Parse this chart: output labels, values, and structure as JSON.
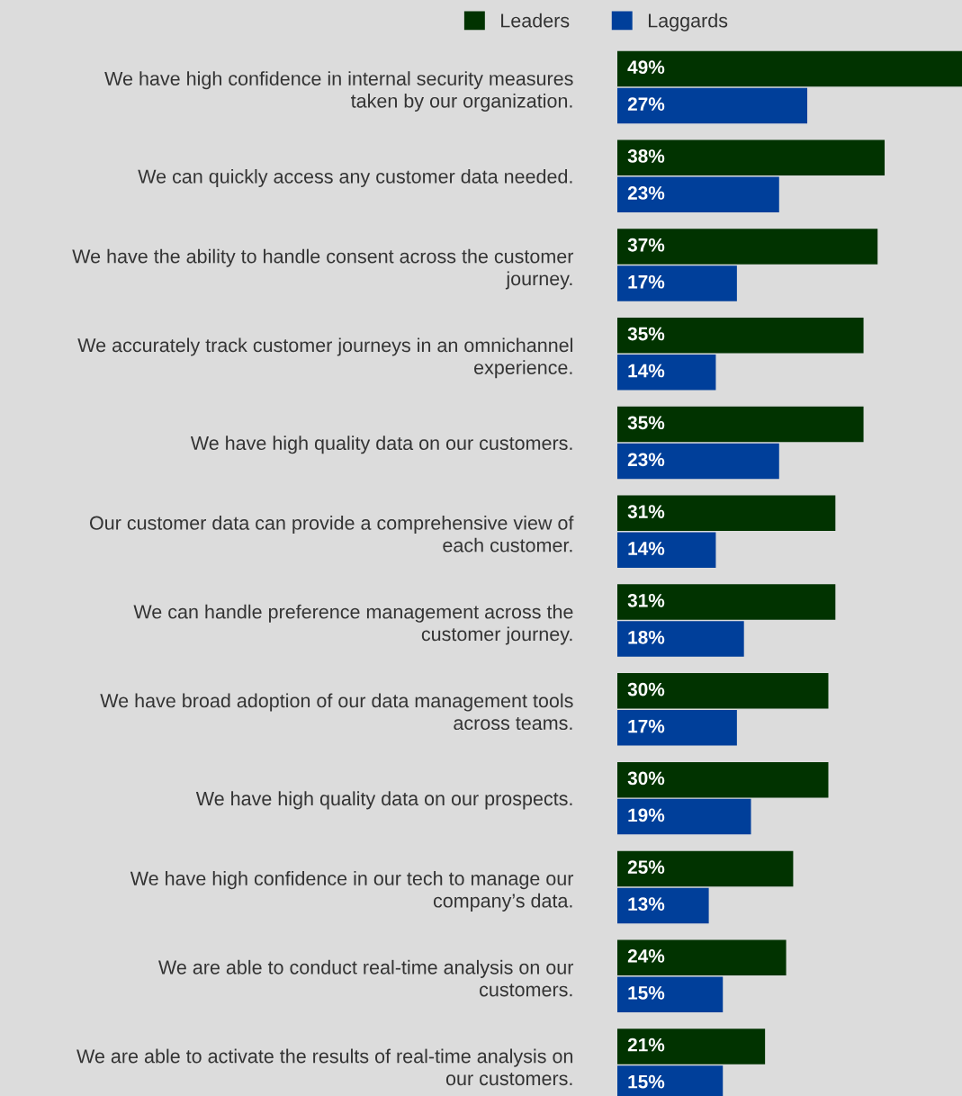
{
  "chart_data": {
    "type": "bar",
    "orientation": "horizontal",
    "legend": "top",
    "grid": false,
    "relative": false,
    "categories": [
      "We have high confidence in internal security measures\ntaken by our organization.",
      "We can quickly access any customer data needed.",
      "We have the ability to handle consent across the customer\njourney.",
      "We accurately track customer journeys in an omnichannel\nexperience.",
      "We have high quality data on our customers.",
      "Our customer data can provide a comprehensive view of\neach customer.",
      "We can handle preference management across the\ncustomer journey.",
      "We have broad adoption of our data management tools\nacross teams.",
      "We have high quality data on our prospects.",
      "We have high confidence in our tech to manage our\ncompany’s data.",
      "We are able to conduct real-time analysis on our\ncustomers.",
      "We are able to activate the results of real-time analysis on\nour customers."
    ],
    "series": [
      {
        "name": "Leaders",
        "color": "#013300",
        "values": [
          49,
          38,
          37,
          35,
          35,
          31,
          31,
          30,
          30,
          25,
          24,
          21
        ],
        "value_labels": [
          "49%",
          "38%",
          "37%",
          "35%",
          "35%",
          "31%",
          "31%",
          "30%",
          "30%",
          "25%",
          "24%",
          "21%"
        ]
      },
      {
        "name": "Laggards",
        "color": "#003f9a",
        "values": [
          27,
          23,
          17,
          14,
          23,
          14,
          18,
          17,
          19,
          13,
          15,
          15
        ],
        "value_labels": [
          "27%",
          "23%",
          "17%",
          "14%",
          "23%",
          "14%",
          "18%",
          "17%",
          "19%",
          "13%",
          "15%",
          "15%"
        ]
      }
    ]
  }
}
